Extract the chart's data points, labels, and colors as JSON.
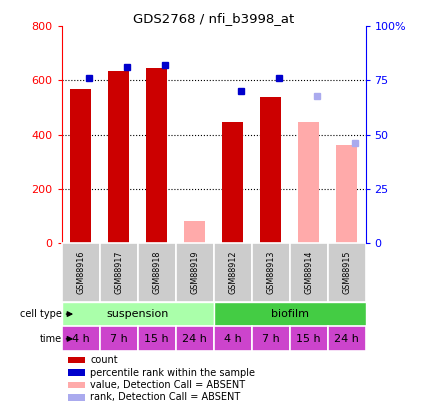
{
  "title": "GDS2768 / nfi_b3998_at",
  "samples": [
    "GSM88916",
    "GSM88917",
    "GSM88918",
    "GSM88919",
    "GSM88912",
    "GSM88913",
    "GSM88914",
    "GSM88915"
  ],
  "count_values": [
    570,
    635,
    645,
    null,
    445,
    540,
    null,
    null
  ],
  "count_absent_values": [
    null,
    null,
    null,
    80,
    null,
    null,
    445,
    360
  ],
  "percentile_values": [
    76,
    81,
    82,
    null,
    70,
    76,
    null,
    null
  ],
  "percentile_absent_values": [
    null,
    null,
    null,
    null,
    null,
    null,
    68,
    46
  ],
  "time_labels": [
    "4 h",
    "7 h",
    "15 h",
    "24 h",
    "4 h",
    "7 h",
    "15 h",
    "24 h"
  ],
  "ylim_left": [
    0,
    800
  ],
  "ylim_right": [
    0,
    100
  ],
  "yticks_left": [
    0,
    200,
    400,
    600,
    800
  ],
  "yticks_right": [
    0,
    25,
    50,
    75,
    100
  ],
  "ytick_labels_right": [
    "0",
    "25",
    "50",
    "75",
    "100%"
  ],
  "color_count": "#cc0000",
  "color_count_absent": "#ffaaaa",
  "color_percentile": "#0000cc",
  "color_percentile_absent": "#aaaaee",
  "color_suspension": "#aaffaa",
  "color_biofilm": "#44cc44",
  "color_time_bg": "#cc44cc",
  "color_sample_bg": "#cccccc",
  "legend_items": [
    {
      "label": "count",
      "color": "#cc0000"
    },
    {
      "label": "percentile rank within the sample",
      "color": "#0000cc"
    },
    {
      "label": "value, Detection Call = ABSENT",
      "color": "#ffaaaa"
    },
    {
      "label": "rank, Detection Call = ABSENT",
      "color": "#aaaaee"
    }
  ]
}
